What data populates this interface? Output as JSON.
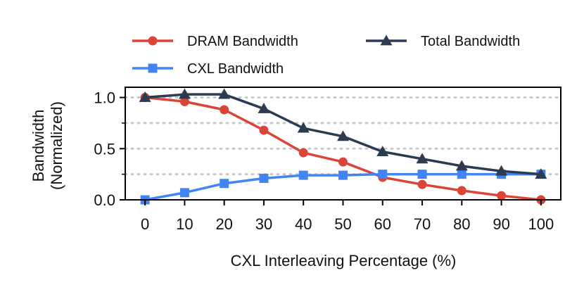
{
  "chart_data": {
    "type": "line",
    "x": [
      0,
      10,
      20,
      30,
      40,
      50,
      60,
      70,
      80,
      90,
      100
    ],
    "xlabel": "CXL Interleaving Percentage (%)",
    "ylabel_line1": "Bandwidth",
    "ylabel_line2": "(Normalized)",
    "xlim": [
      -5,
      105
    ],
    "ylim": [
      0,
      1.1
    ],
    "yticks": [
      0.0,
      0.5,
      1.0
    ],
    "ytick_labels": [
      "0.0",
      "0.5",
      "1.0"
    ],
    "yminor_ticks": [
      0.25,
      0.75
    ],
    "grid_lines": [
      0.25,
      0.5,
      0.75,
      1.0
    ],
    "grid": "horizontal-dotted",
    "legend_placement": "top, above plot, two columns",
    "series": [
      {
        "name": "DRAM Bandwidth",
        "color": "#dc4437",
        "marker": "circle",
        "values": [
          1.0,
          0.96,
          0.88,
          0.68,
          0.46,
          0.37,
          0.22,
          0.15,
          0.09,
          0.04,
          0.0
        ]
      },
      {
        "name": "CXL Bandwidth",
        "color": "#4284f3",
        "marker": "square",
        "values": [
          0.0,
          0.07,
          0.16,
          0.21,
          0.24,
          0.24,
          0.25,
          0.25,
          0.25,
          0.25,
          0.25
        ]
      },
      {
        "name": "Total Bandwidth",
        "color": "#2c3a52",
        "marker": "triangle",
        "values": [
          1.0,
          1.03,
          1.03,
          0.89,
          0.7,
          0.62,
          0.47,
          0.4,
          0.33,
          0.28,
          0.25
        ]
      }
    ]
  }
}
